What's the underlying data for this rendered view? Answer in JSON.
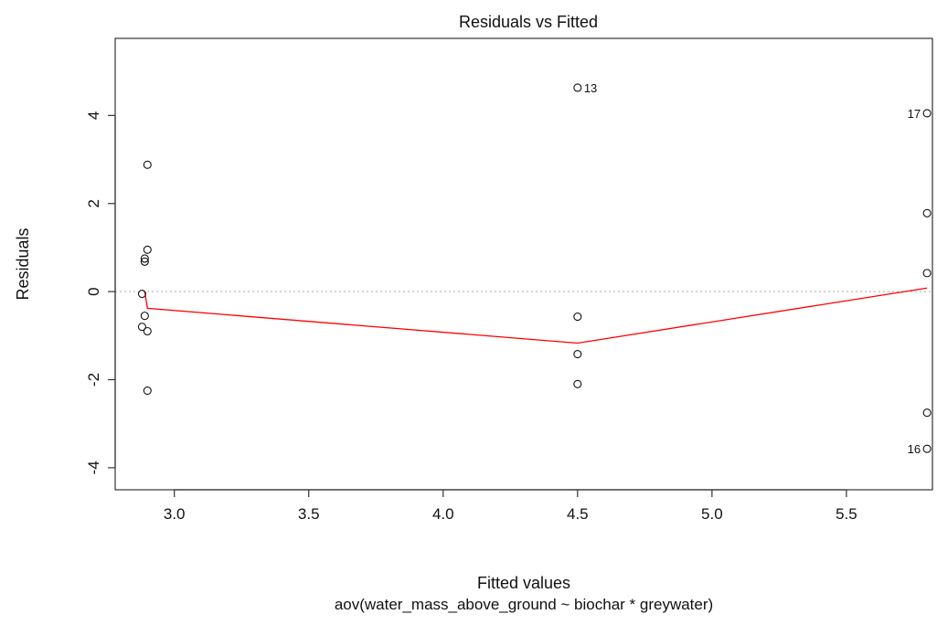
{
  "chart_data": {
    "type": "scatter",
    "title": "Residuals vs Fitted",
    "xlabel": "Fitted values",
    "ylabel": "Residuals",
    "subtitle": "aov(water_mass_above_ground ~ biochar * greywater)",
    "xlim": [
      2.78,
      5.82
    ],
    "ylim": [
      -4.5,
      5.75
    ],
    "xticks": [
      3.0,
      3.5,
      4.0,
      4.5,
      5.0,
      5.5
    ],
    "xtick_labels": [
      "3.0",
      "3.5",
      "4.0",
      "4.5",
      "5.0",
      "5.5"
    ],
    "yticks": [
      -4,
      -2,
      0,
      2,
      4
    ],
    "ytick_labels": [
      "-4",
      "-2",
      "0",
      "2",
      "4"
    ],
    "reference_line": {
      "y": 0,
      "style": "dotted",
      "color": "#aaaaaa"
    },
    "points": [
      {
        "x": 2.9,
        "y": 2.88
      },
      {
        "x": 2.9,
        "y": 0.95
      },
      {
        "x": 2.89,
        "y": 0.75
      },
      {
        "x": 2.89,
        "y": 0.68
      },
      {
        "x": 2.88,
        "y": -0.05
      },
      {
        "x": 2.89,
        "y": -0.55
      },
      {
        "x": 2.88,
        "y": -0.8
      },
      {
        "x": 2.9,
        "y": -0.9
      },
      {
        "x": 2.9,
        "y": -2.25
      },
      {
        "x": 4.5,
        "y": 4.63,
        "label": "13"
      },
      {
        "x": 4.5,
        "y": -0.57
      },
      {
        "x": 4.5,
        "y": -1.42
      },
      {
        "x": 4.5,
        "y": -2.1
      },
      {
        "x": 5.8,
        "y": 4.05,
        "label": "17"
      },
      {
        "x": 5.8,
        "y": 1.78
      },
      {
        "x": 5.8,
        "y": 0.42
      },
      {
        "x": 5.8,
        "y": -2.75
      },
      {
        "x": 5.8,
        "y": -3.57,
        "label": "16"
      }
    ],
    "smooth_line": {
      "color": "#ff0000",
      "x": [
        2.89,
        2.9,
        4.5,
        5.8
      ],
      "y": [
        0.0,
        -0.38,
        -1.17,
        0.08
      ]
    }
  }
}
